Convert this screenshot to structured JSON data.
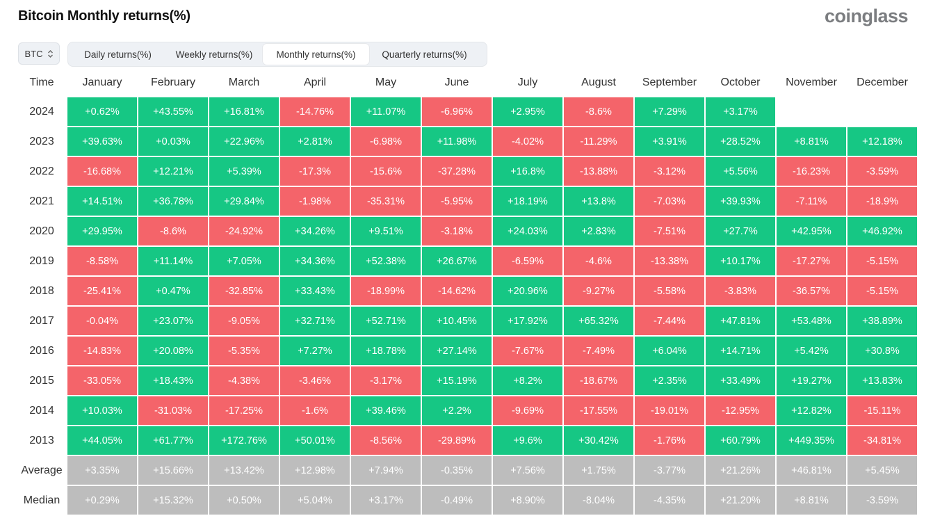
{
  "page": {
    "title": "Bitcoin Monthly returns(%)",
    "brand": "coinglass"
  },
  "asset_select": {
    "value": "BTC"
  },
  "tabs": [
    {
      "label": "Daily returns(%)",
      "active": false
    },
    {
      "label": "Weekly returns(%)",
      "active": false
    },
    {
      "label": "Monthly returns(%)",
      "active": true
    },
    {
      "label": "Quarterly returns(%)",
      "active": false
    }
  ],
  "colors": {
    "positive": "#16c784",
    "negative": "#f4646a",
    "summary": "#bdbdbd"
  },
  "table": {
    "time_header": "Time",
    "months": [
      "January",
      "February",
      "March",
      "April",
      "May",
      "June",
      "July",
      "August",
      "September",
      "October",
      "November",
      "December"
    ],
    "rows": [
      {
        "label": "2024",
        "values": [
          "+0.62%",
          "+43.55%",
          "+16.81%",
          "-14.76%",
          "+11.07%",
          "-6.96%",
          "+2.95%",
          "-8.6%",
          "+7.29%",
          "+3.17%",
          "",
          ""
        ]
      },
      {
        "label": "2023",
        "values": [
          "+39.63%",
          "+0.03%",
          "+22.96%",
          "+2.81%",
          "-6.98%",
          "+11.98%",
          "-4.02%",
          "-11.29%",
          "+3.91%",
          "+28.52%",
          "+8.81%",
          "+12.18%"
        ]
      },
      {
        "label": "2022",
        "values": [
          "-16.68%",
          "+12.21%",
          "+5.39%",
          "-17.3%",
          "-15.6%",
          "-37.28%",
          "+16.8%",
          "-13.88%",
          "-3.12%",
          "+5.56%",
          "-16.23%",
          "-3.59%"
        ]
      },
      {
        "label": "2021",
        "values": [
          "+14.51%",
          "+36.78%",
          "+29.84%",
          "-1.98%",
          "-35.31%",
          "-5.95%",
          "+18.19%",
          "+13.8%",
          "-7.03%",
          "+39.93%",
          "-7.11%",
          "-18.9%"
        ]
      },
      {
        "label": "2020",
        "values": [
          "+29.95%",
          "-8.6%",
          "-24.92%",
          "+34.26%",
          "+9.51%",
          "-3.18%",
          "+24.03%",
          "+2.83%",
          "-7.51%",
          "+27.7%",
          "+42.95%",
          "+46.92%"
        ]
      },
      {
        "label": "2019",
        "values": [
          "-8.58%",
          "+11.14%",
          "+7.05%",
          "+34.36%",
          "+52.38%",
          "+26.67%",
          "-6.59%",
          "-4.6%",
          "-13.38%",
          "+10.17%",
          "-17.27%",
          "-5.15%"
        ]
      },
      {
        "label": "2018",
        "values": [
          "-25.41%",
          "+0.47%",
          "-32.85%",
          "+33.43%",
          "-18.99%",
          "-14.62%",
          "+20.96%",
          "-9.27%",
          "-5.58%",
          "-3.83%",
          "-36.57%",
          "-5.15%"
        ]
      },
      {
        "label": "2017",
        "values": [
          "-0.04%",
          "+23.07%",
          "-9.05%",
          "+32.71%",
          "+52.71%",
          "+10.45%",
          "+17.92%",
          "+65.32%",
          "-7.44%",
          "+47.81%",
          "+53.48%",
          "+38.89%"
        ]
      },
      {
        "label": "2016",
        "values": [
          "-14.83%",
          "+20.08%",
          "-5.35%",
          "+7.27%",
          "+18.78%",
          "+27.14%",
          "-7.67%",
          "-7.49%",
          "+6.04%",
          "+14.71%",
          "+5.42%",
          "+30.8%"
        ]
      },
      {
        "label": "2015",
        "values": [
          "-33.05%",
          "+18.43%",
          "-4.38%",
          "-3.46%",
          "-3.17%",
          "+15.19%",
          "+8.2%",
          "-18.67%",
          "+2.35%",
          "+33.49%",
          "+19.27%",
          "+13.83%"
        ]
      },
      {
        "label": "2014",
        "values": [
          "+10.03%",
          "-31.03%",
          "-17.25%",
          "-1.6%",
          "+39.46%",
          "+2.2%",
          "-9.69%",
          "-17.55%",
          "-19.01%",
          "-12.95%",
          "+12.82%",
          "-15.11%"
        ]
      },
      {
        "label": "2013",
        "values": [
          "+44.05%",
          "+61.77%",
          "+172.76%",
          "+50.01%",
          "-8.56%",
          "-29.89%",
          "+9.6%",
          "+30.42%",
          "-1.76%",
          "+60.79%",
          "+449.35%",
          "-34.81%"
        ]
      }
    ],
    "summary_rows": [
      {
        "label": "Average",
        "values": [
          "+3.35%",
          "+15.66%",
          "+13.42%",
          "+12.98%",
          "+7.94%",
          "-0.35%",
          "+7.56%",
          "+1.75%",
          "-3.77%",
          "+21.26%",
          "+46.81%",
          "+5.45%"
        ]
      },
      {
        "label": "Median",
        "values": [
          "+0.29%",
          "+15.32%",
          "+0.50%",
          "+5.04%",
          "+3.17%",
          "-0.49%",
          "+8.90%",
          "-8.04%",
          "-4.35%",
          "+21.20%",
          "+8.81%",
          "-3.59%"
        ]
      }
    ]
  }
}
